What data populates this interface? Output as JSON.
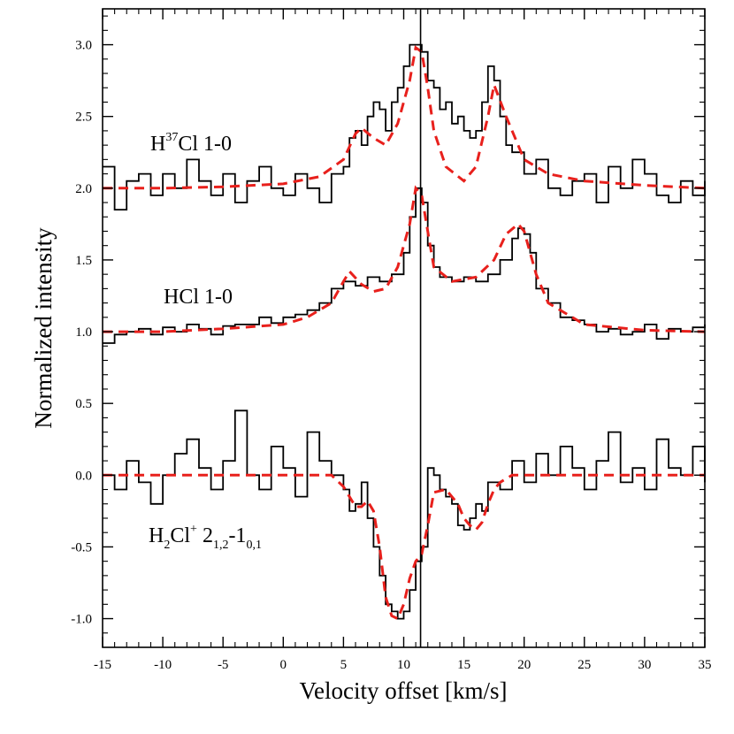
{
  "chart_data": {
    "type": "line",
    "xlabel": "Velocity offset [km/s]",
    "ylabel": "Normalized intensity",
    "xlim": [
      -15,
      35
    ],
    "ylim": [
      -1.2,
      3.25
    ],
    "xticks": [
      -15,
      -10,
      -5,
      0,
      5,
      10,
      15,
      20,
      25,
      30,
      35
    ],
    "xtick_labels": [
      "-15",
      "-10",
      "-5",
      "0",
      "5",
      "10",
      "15",
      "20",
      "25",
      "30",
      "35"
    ],
    "yticks": [
      -1.0,
      -0.5,
      0.0,
      0.5,
      1.0,
      1.5,
      2.0,
      2.5,
      3.0
    ],
    "ytick_labels": [
      "-1.0",
      "-0.5",
      "0.0",
      "0.5",
      "1.0",
      "1.5",
      "2.0",
      "2.5",
      "3.0"
    ],
    "vline": {
      "x": 11.4,
      "color": "#000000"
    },
    "annotations": [
      {
        "id": "h37cl",
        "base": "H",
        "sup": "37",
        "rest": "Cl 1-0",
        "x": -14,
        "y": 2.45
      },
      {
        "id": "hcl",
        "text": "HCl 1-0",
        "x": -12.5,
        "y": 1.3
      },
      {
        "id": "h2clp",
        "base": "H",
        "sub": "2",
        "mid": "Cl",
        "sup": "+",
        "rest": " 2",
        "sub2": "1,2",
        "dash": "-1",
        "sub3": "0,1",
        "x": -14,
        "y": -0.6
      }
    ],
    "series": [
      {
        "name": "H37Cl 1-0 observed",
        "style": "step",
        "color": "#000000",
        "x": [
          -15,
          -14,
          -13,
          -12,
          -11,
          -10,
          -9,
          -8,
          -7,
          -6,
          -5,
          -4,
          -3,
          -2,
          -1,
          0,
          1,
          2,
          3,
          4,
          5,
          5.5,
          6,
          6.5,
          7,
          7.5,
          8,
          8.5,
          9,
          9.5,
          10,
          10.5,
          11,
          11.5,
          12,
          12.5,
          13,
          13.5,
          14,
          14.5,
          15,
          15.5,
          16,
          16.5,
          17,
          17.5,
          18,
          18.5,
          19,
          20,
          21,
          22,
          23,
          24,
          25,
          26,
          27,
          28,
          29,
          30,
          31,
          32,
          33,
          34,
          35
        ],
        "values": [
          2.15,
          1.85,
          2.05,
          2.1,
          1.95,
          2.1,
          2.0,
          2.2,
          2.05,
          1.95,
          2.1,
          1.9,
          2.05,
          2.15,
          2.0,
          1.95,
          2.1,
          2.0,
          1.9,
          2.1,
          2.15,
          2.35,
          2.4,
          2.3,
          2.5,
          2.6,
          2.55,
          2.4,
          2.6,
          2.7,
          2.85,
          3.0,
          3.0,
          2.95,
          2.75,
          2.7,
          2.55,
          2.6,
          2.45,
          2.5,
          2.4,
          2.35,
          2.4,
          2.6,
          2.85,
          2.75,
          2.5,
          2.3,
          2.25,
          2.1,
          2.2,
          2.0,
          1.95,
          2.05,
          2.1,
          1.9,
          2.15,
          2.0,
          2.2,
          2.1,
          1.95,
          1.9,
          2.05,
          1.95,
          2.05
        ]
      },
      {
        "name": "H37Cl 1-0 model",
        "style": "dashed",
        "color": "#e8201c",
        "x": [
          -15,
          -10,
          -5,
          0,
          3,
          5,
          6,
          6.5,
          7.5,
          8.5,
          9.5,
          10.5,
          11,
          11.5,
          12,
          12.5,
          13.5,
          15,
          16,
          17,
          17.5,
          18.5,
          20,
          22,
          25,
          30,
          35
        ],
        "values": [
          2.0,
          2.0,
          2.01,
          2.03,
          2.08,
          2.2,
          2.38,
          2.42,
          2.35,
          2.3,
          2.45,
          2.75,
          2.98,
          2.95,
          2.7,
          2.4,
          2.15,
          2.05,
          2.15,
          2.5,
          2.72,
          2.5,
          2.2,
          2.1,
          2.05,
          2.02,
          2.0
        ]
      },
      {
        "name": "HCl 1-0 observed",
        "style": "step",
        "color": "#000000",
        "x": [
          -15,
          -14,
          -13,
          -12,
          -11,
          -10,
          -9,
          -8,
          -7,
          -6,
          -5,
          -4,
          -3,
          -2,
          -1,
          0,
          1,
          2,
          3,
          4,
          5,
          6,
          7,
          8,
          9,
          10,
          10.5,
          11,
          11.5,
          12,
          12.5,
          13,
          14,
          15,
          16,
          17,
          18,
          19,
          19.5,
          20,
          20.5,
          21,
          22,
          23,
          24,
          25,
          26,
          27,
          28,
          29,
          30,
          31,
          32,
          33,
          34,
          35
        ],
        "values": [
          0.92,
          0.98,
          1.0,
          1.02,
          0.98,
          1.03,
          1.0,
          1.05,
          1.02,
          0.98,
          1.04,
          1.05,
          1.05,
          1.1,
          1.06,
          1.1,
          1.12,
          1.15,
          1.2,
          1.3,
          1.35,
          1.32,
          1.38,
          1.35,
          1.4,
          1.55,
          1.8,
          2.0,
          1.9,
          1.6,
          1.45,
          1.38,
          1.35,
          1.38,
          1.35,
          1.4,
          1.5,
          1.65,
          1.72,
          1.68,
          1.55,
          1.3,
          1.2,
          1.1,
          1.08,
          1.05,
          1.0,
          1.02,
          0.98,
          1.0,
          1.05,
          0.95,
          1.02,
          1.0,
          1.03,
          1.05
        ]
      },
      {
        "name": "HCl 1-0 model",
        "style": "dashed",
        "color": "#e8201c",
        "x": [
          -15,
          -10,
          -5,
          0,
          2,
          4,
          5,
          5.5,
          6.5,
          7.5,
          8.5,
          9.5,
          10.5,
          11,
          11.5,
          12,
          12.5,
          14,
          16,
          17.5,
          18.5,
          19.5,
          20,
          21,
          22,
          25,
          30,
          35
        ],
        "values": [
          1.0,
          1.0,
          1.02,
          1.05,
          1.1,
          1.2,
          1.35,
          1.42,
          1.33,
          1.28,
          1.3,
          1.45,
          1.75,
          2.0,
          1.95,
          1.7,
          1.45,
          1.35,
          1.38,
          1.5,
          1.68,
          1.75,
          1.7,
          1.4,
          1.2,
          1.05,
          1.01,
          1.0
        ]
      },
      {
        "name": "H2Cl+ 2(1,2)-1(0,1) observed",
        "style": "step",
        "color": "#000000",
        "x": [
          -15,
          -14,
          -13,
          -12,
          -11,
          -10,
          -9,
          -8,
          -7,
          -6,
          -5,
          -4,
          -3,
          -2,
          -1,
          0,
          1,
          2,
          3,
          4,
          5,
          5.5,
          6,
          6.5,
          7,
          7.5,
          8,
          8.5,
          9,
          9.5,
          10,
          10.5,
          11,
          11.5,
          12,
          12.5,
          13,
          13.5,
          14,
          14.5,
          15,
          15.5,
          16,
          16.5,
          17,
          18,
          19,
          20,
          21,
          22,
          23,
          24,
          25,
          26,
          27,
          28,
          29,
          30,
          31,
          32,
          33,
          34,
          35
        ],
        "values": [
          0.0,
          -0.1,
          0.1,
          -0.05,
          -0.2,
          0.0,
          0.15,
          0.25,
          0.05,
          -0.1,
          0.1,
          0.45,
          0.0,
          -0.1,
          0.2,
          0.05,
          -0.15,
          0.3,
          0.1,
          0.0,
          -0.1,
          -0.25,
          -0.2,
          -0.05,
          -0.3,
          -0.5,
          -0.7,
          -0.9,
          -0.95,
          -1.0,
          -0.95,
          -0.8,
          -0.6,
          -0.5,
          0.05,
          0.0,
          -0.1,
          -0.15,
          -0.2,
          -0.35,
          -0.38,
          -0.3,
          -0.2,
          -0.25,
          -0.05,
          -0.1,
          0.1,
          -0.05,
          0.15,
          0.0,
          0.2,
          0.05,
          -0.1,
          0.1,
          0.3,
          -0.05,
          0.05,
          -0.1,
          0.25,
          0.05,
          0.0,
          0.2,
          -0.05
        ]
      },
      {
        "name": "H2Cl+ 2(1,2)-1(0,1) model",
        "style": "dashed",
        "color": "#e8201c",
        "x": [
          -15,
          4,
          5,
          6,
          6.5,
          7,
          7.5,
          8,
          8.5,
          9,
          9.5,
          10,
          10.5,
          11,
          11.5,
          12,
          12.5,
          13.5,
          14.5,
          15,
          15.5,
          16,
          16.5,
          17,
          17.5,
          18,
          19,
          35
        ],
        "values": [
          0.0,
          0.0,
          -0.08,
          -0.22,
          -0.22,
          -0.18,
          -0.25,
          -0.5,
          -0.85,
          -0.98,
          -1.0,
          -0.9,
          -0.72,
          -0.6,
          -0.55,
          -0.35,
          -0.12,
          -0.1,
          -0.2,
          -0.3,
          -0.35,
          -0.38,
          -0.33,
          -0.2,
          -0.1,
          -0.05,
          0.0,
          0.0
        ]
      }
    ]
  }
}
